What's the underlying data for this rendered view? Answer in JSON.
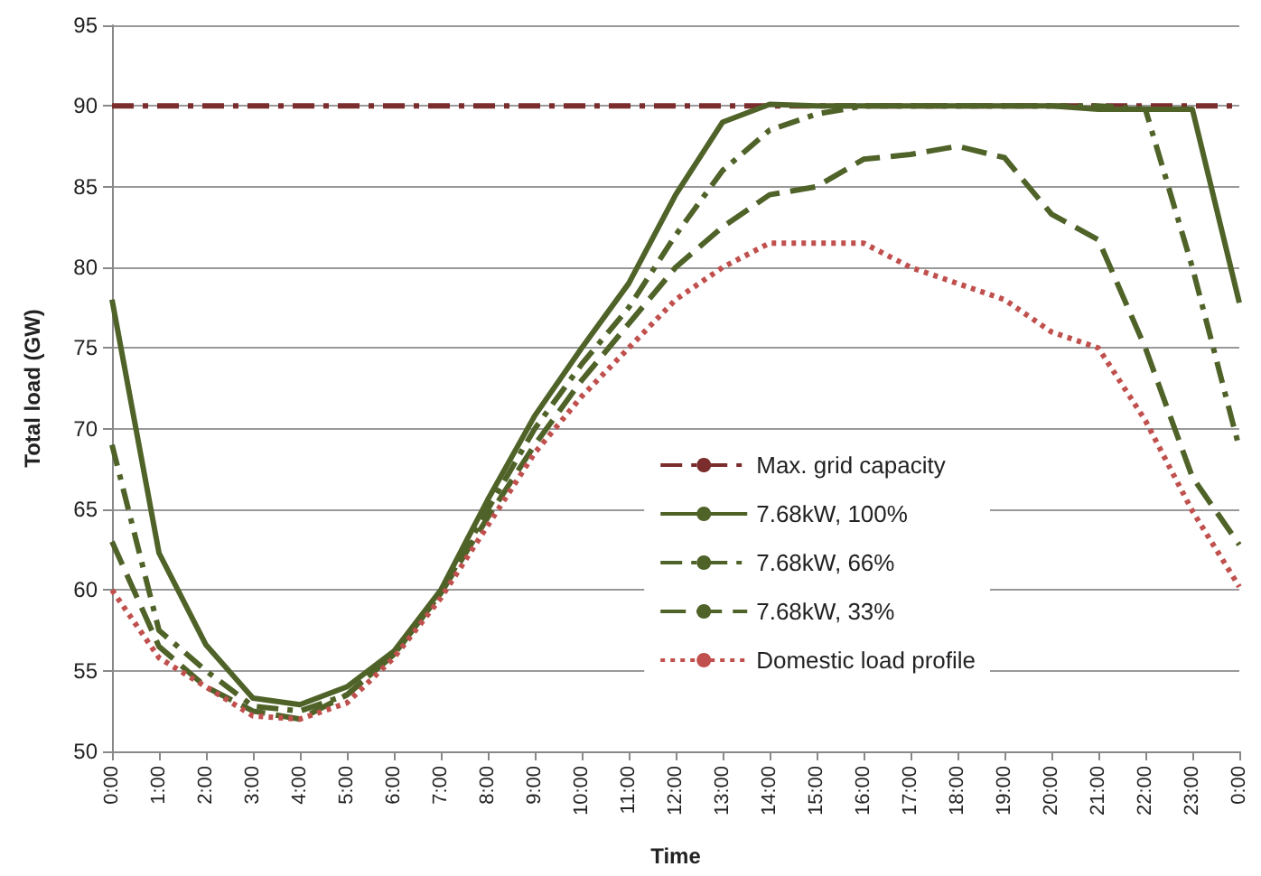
{
  "chart_data": {
    "type": "line",
    "xlabel": "Time",
    "ylabel": "Total load (GW)",
    "categories": [
      "0:00",
      "1:00",
      "2:00",
      "3:00",
      "4:00",
      "5:00",
      "6:00",
      "7:00",
      "8:00",
      "9:00",
      "10:00",
      "11:00",
      "12:00",
      "13:00",
      "14:00",
      "15:00",
      "16:00",
      "17:00",
      "18:00",
      "19:00",
      "20:00",
      "21:00",
      "22:00",
      "23:00",
      "0:00"
    ],
    "series": [
      {
        "name": "Max. grid capacity",
        "color": "#7b2c2c",
        "line_style": "dashdot",
        "values": [
          90,
          90,
          90,
          90,
          90,
          90,
          90,
          90,
          90,
          90,
          90,
          90,
          90,
          90,
          90,
          90,
          90,
          90,
          90,
          90,
          90,
          90,
          90,
          90,
          90
        ]
      },
      {
        "name": "7.68kW, 100%",
        "color": "#4f6228",
        "line_style": "solid",
        "values": [
          78,
          62.3,
          56.6,
          53.3,
          52.9,
          54,
          56.2,
          60,
          65.6,
          70.8,
          75,
          79,
          84.5,
          89,
          90.1,
          90,
          90,
          90,
          90,
          90,
          90,
          89.8,
          89.8,
          89.8,
          77.8
        ]
      },
      {
        "name": "7.68kW, 66%",
        "color": "#4f6228",
        "line_style": "dashdot",
        "values": [
          69,
          57.5,
          55,
          52.8,
          52.5,
          53.5,
          56,
          59.8,
          65,
          70,
          74,
          77.5,
          82,
          86,
          88.5,
          89.5,
          90,
          90,
          90,
          90,
          90,
          90,
          89.8,
          80,
          68.8
        ]
      },
      {
        "name": "7.68kW, 33%",
        "color": "#4f6228",
        "line_style": "dashed",
        "values": [
          63,
          56.5,
          54,
          52.5,
          52,
          53.5,
          56,
          59.8,
          64.5,
          69,
          73,
          76.5,
          80,
          82.5,
          84.5,
          85,
          86.7,
          87,
          87.5,
          86.8,
          83.3,
          81.7,
          75,
          67,
          62.8
        ]
      },
      {
        "name": "Domestic load profile",
        "color": "#c0504d",
        "line_style": "dotted",
        "values": [
          60,
          55.8,
          54,
          52.2,
          52,
          53,
          55.8,
          59.5,
          64,
          68.5,
          72,
          75,
          78,
          80,
          81.5,
          81.5,
          81.5,
          80,
          79,
          78,
          76,
          75,
          70.5,
          64.9,
          60.2
        ]
      }
    ],
    "ylim": [
      50,
      95
    ],
    "yticks": [
      50,
      55,
      60,
      65,
      70,
      75,
      80,
      85,
      90,
      95
    ],
    "grid": "y",
    "legend": "right",
    "marker": "none"
  }
}
